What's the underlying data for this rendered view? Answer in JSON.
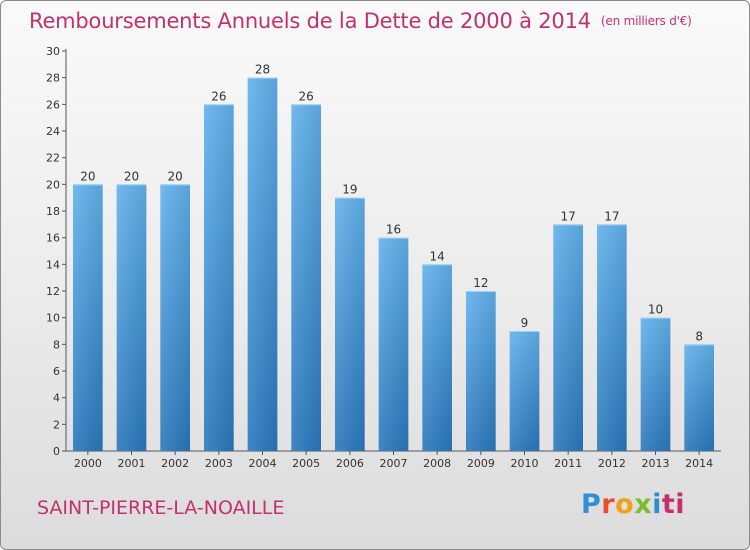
{
  "header": {
    "title": "Remboursements Annuels de la Dette de 2000 à 2014",
    "unit": "(en milliers d'€)"
  },
  "footer": {
    "commune": "SAINT-PIERRE-LA-NOAILLE",
    "logo_letters": [
      "P",
      "r",
      "o",
      "x",
      "i",
      "ti"
    ]
  },
  "colors": {
    "title": "#c4316a",
    "bar_top": "#62b2ec",
    "bar_bottom": "#2a78bd"
  },
  "chart_data": {
    "type": "bar",
    "title": "Remboursements Annuels de la Dette de 2000 à 2014",
    "xlabel": "",
    "ylabel": "",
    "categories": [
      "2000",
      "2001",
      "2002",
      "2003",
      "2004",
      "2005",
      "2006",
      "2007",
      "2008",
      "2009",
      "2010",
      "2011",
      "2012",
      "2013",
      "2014"
    ],
    "values": [
      20,
      20,
      20,
      26,
      28,
      26,
      19,
      16,
      14,
      12,
      9,
      17,
      17,
      10,
      8
    ],
    "ylim": [
      0,
      30
    ],
    "yticks": [
      0,
      2,
      4,
      6,
      8,
      10,
      12,
      14,
      16,
      18,
      20,
      22,
      24,
      26,
      28,
      30
    ],
    "grid": false
  }
}
